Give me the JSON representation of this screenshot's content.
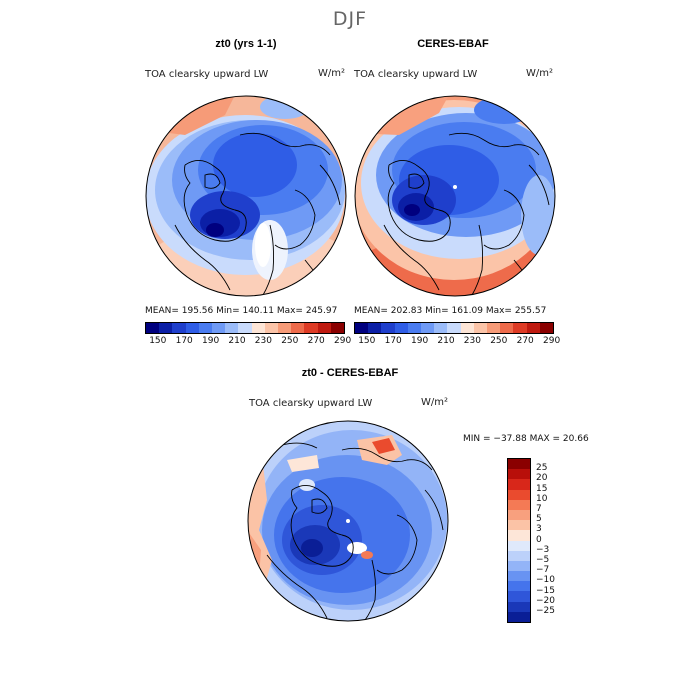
{
  "figure": {
    "season": "DJF",
    "field": "TOA clearsky upward LW",
    "units": "W/m²"
  },
  "panels": [
    {
      "title": "zt0 (yrs 1-1)",
      "stats": "MEAN= 195.56   Min= 140.11   Max= 245.97"
    },
    {
      "title": "CERES-EBAF",
      "stats": "MEAN= 202.83   Min= 161.09   Max= 255.57"
    },
    {
      "title": "zt0 - CERES-EBAF",
      "stats": "MIN = −37.88 MAX =  20.66"
    }
  ],
  "colorbar_abs": {
    "labels": [
      "150",
      "170",
      "190",
      "210",
      "230",
      "250",
      "270",
      "290"
    ],
    "colors": [
      "#00007f",
      "#0b1fa6",
      "#1f3fcc",
      "#2f5de6",
      "#4a7cf0",
      "#6f9af5",
      "#9bbcf9",
      "#c9dbfc",
      "#fde5d6",
      "#fbc4a8",
      "#f69b78",
      "#ee6b4b",
      "#de3b25",
      "#bf1a10",
      "#8a0000"
    ]
  },
  "colorbar_diff": {
    "labels": [
      "25",
      "20",
      "15",
      "10",
      "7",
      "5",
      "3",
      "0",
      "−3",
      "−5",
      "−7",
      "−10",
      "−15",
      "−20",
      "−25"
    ],
    "colors": [
      "#8a0000",
      "#b80f0a",
      "#d8271a",
      "#ea4b2e",
      "#f47a55",
      "#f8a07e",
      "#fbc3a6",
      "#fde6d8",
      "#dfe9fb",
      "#bcd1fa",
      "#93b4f7",
      "#6893f2",
      "#4574ec",
      "#2f56d9",
      "#1a38b8",
      "#0a1e96"
    ]
  }
}
